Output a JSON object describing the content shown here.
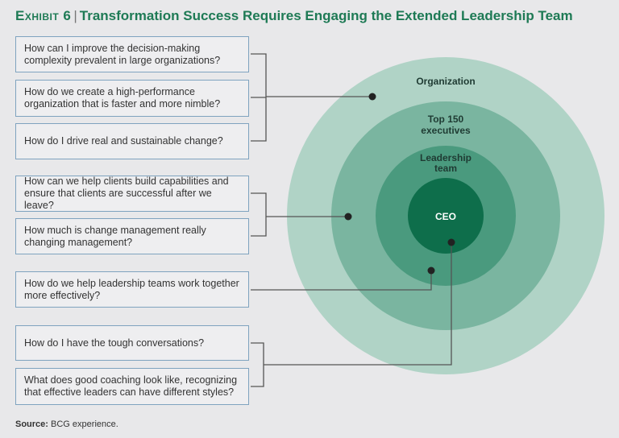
{
  "title": {
    "exhibit": "Exhibit 6",
    "separator": "|",
    "text": "Transformation Success Requires Engaging the Extended Leadership Team"
  },
  "questions": [
    "How can I improve the decision-making complexity prevalent in large organizations?",
    "How do we create a high-performance organization that is faster and more nimble?",
    "How do I drive real and sustainable change?",
    "How can we help clients build capabilities and ensure that clients are successful after we leave?",
    "How much is change management really changing management?",
    "How do we help leadership teams work together more effectively?",
    "How do I have the tough conversations?",
    "What does good coaching look like, recognizing that effective leaders can have different styles?"
  ],
  "rings": {
    "organization": "Organization",
    "top150_line1": "Top 150",
    "top150_line2": "executives",
    "leadership_line1": "Leadership",
    "leadership_line2": "team",
    "ceo": "CEO"
  },
  "colors": {
    "organization": "#b0d3c6",
    "top150": "#7ab5a0",
    "leadership": "#4a9a7e",
    "ceo": "#0e6e4b",
    "title": "#1e7a55"
  },
  "source": {
    "label": "Source:",
    "text": "BCG experience."
  }
}
